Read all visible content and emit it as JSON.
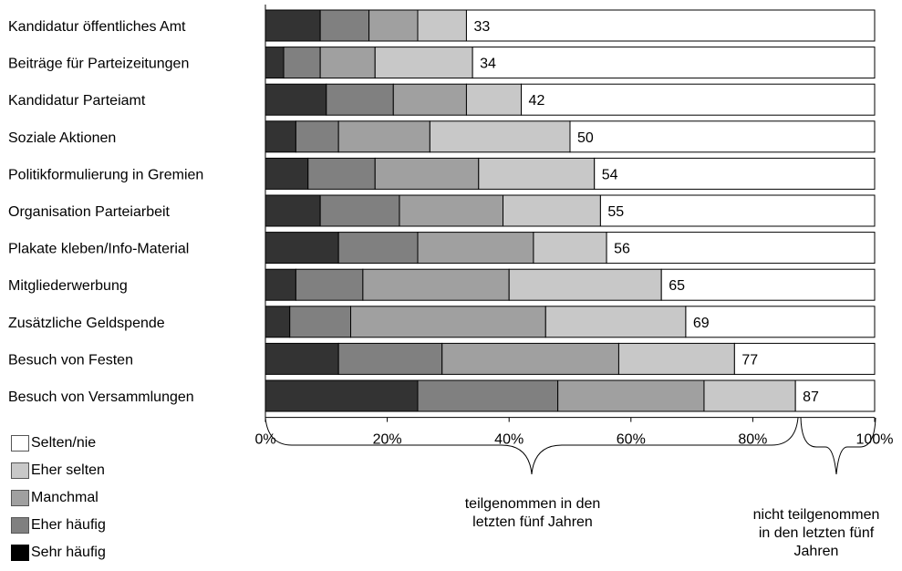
{
  "chart_data": {
    "type": "bar",
    "orientation": "horizontal",
    "stacked": true,
    "categories": [
      "Kandidatur öffentliches Amt",
      "Beiträge für Parteizeitungen",
      "Kandidatur Parteiamt",
      "Soziale Aktionen",
      "Politikformulierung in Gremien",
      "Organisation Parteiarbeit",
      "Plakate kleben/Info-Material",
      "Mitgliederwerbung",
      "Zusätzliche Geldspende",
      "Besuch von Festen",
      "Besuch von Versammlungen"
    ],
    "series": [
      {
        "name": "Sehr häufig",
        "color": "#333333",
        "values": [
          9,
          3,
          10,
          5,
          7,
          9,
          12,
          5,
          4,
          12,
          25
        ]
      },
      {
        "name": "Eher häufig",
        "color": "#808080",
        "values": [
          8,
          6,
          11,
          7,
          11,
          13,
          13,
          11,
          10,
          17,
          23
        ]
      },
      {
        "name": "Manchmal",
        "color": "#a0a0a0",
        "values": [
          8,
          9,
          12,
          15,
          17,
          17,
          19,
          24,
          32,
          29,
          24
        ]
      },
      {
        "name": "Eher selten",
        "color": "#c8c8c8",
        "values": [
          8,
          16,
          9,
          23,
          19,
          16,
          12,
          25,
          23,
          19,
          15
        ]
      },
      {
        "name": "Selten/nie",
        "color": "#ffffff",
        "values": [
          67,
          66,
          58,
          50,
          46,
          45,
          44,
          35,
          31,
          23,
          13
        ]
      }
    ],
    "data_labels": [
      "33",
      "34",
      "42",
      "50",
      "54",
      "55",
      "56",
      "65",
      "69",
      "77",
      "87"
    ],
    "x_ticks": [
      "0%",
      "20%",
      "40%",
      "60%",
      "80%",
      "100%"
    ],
    "xlim": [
      0,
      100
    ],
    "legend_position": "bottom-left",
    "grid": false
  },
  "legend": [
    {
      "label": "Selten/nie",
      "color": "#ffffff"
    },
    {
      "label": "Eher selten",
      "color": "#c8c8c8"
    },
    {
      "label": "Manchmal",
      "color": "#a0a0a0"
    },
    {
      "label": "Eher häufig",
      "color": "#808080"
    },
    {
      "label": "Sehr häufig",
      "color": "#000000"
    }
  ],
  "annotations": {
    "participated": [
      "teilgenommen in den",
      "letzten fünf Jahren"
    ],
    "not_participated": [
      "nicht teilgenommen",
      "in den letzten fünf",
      "Jahren"
    ]
  }
}
